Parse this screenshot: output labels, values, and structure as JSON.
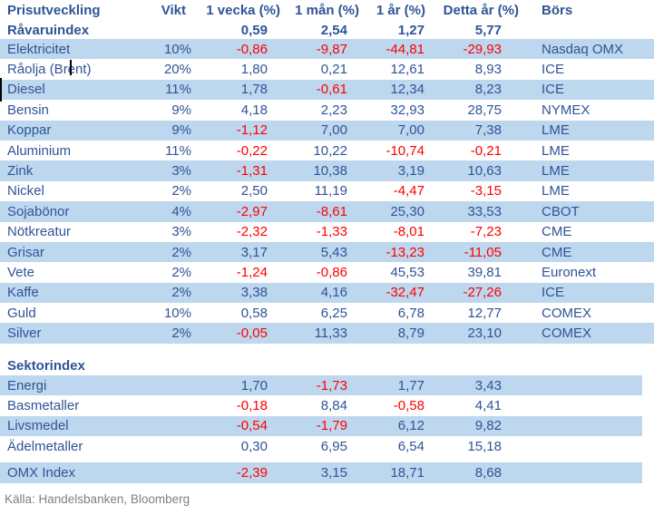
{
  "colors": {
    "ink": "#2F5496",
    "band": "#BDD7EE",
    "neg": "#FF0000",
    "muted": "#808080"
  },
  "header": {
    "columns": [
      "Prisutveckling",
      "Vikt",
      "1 vecka (%)",
      "1 mån (%)",
      "1 år (%)",
      "Detta år (%)",
      "Börs"
    ]
  },
  "table": {
    "ravaruindex": {
      "label": "Råvaruindex",
      "week1": "0,59",
      "month1": "2,54",
      "year1": "1,27",
      "ytd": "5,77"
    },
    "commodities": [
      {
        "name": "Elektricitet",
        "weight": "10%",
        "week1": "-0,86",
        "month1": "-9,87",
        "year1": "-44,81",
        "ytd": "-29,93",
        "exchange": "Nasdaq OMX"
      },
      {
        "name": "Råolja (Brent)",
        "weight": "20%",
        "week1": "1,80",
        "month1": "0,21",
        "year1": "12,61",
        "ytd": "8,93",
        "exchange": "ICE"
      },
      {
        "name": "Diesel",
        "weight": "11%",
        "week1": "1,78",
        "month1": "-0,61",
        "year1": "12,34",
        "ytd": "8,23",
        "exchange": "ICE"
      },
      {
        "name": "Bensin",
        "weight": "9%",
        "week1": "4,18",
        "month1": "2,23",
        "year1": "32,93",
        "ytd": "28,75",
        "exchange": "NYMEX"
      },
      {
        "name": "Koppar",
        "weight": "9%",
        "week1": "-1,12",
        "month1": "7,00",
        "year1": "7,00",
        "ytd": "7,38",
        "exchange": "LME"
      },
      {
        "name": "Aluminium",
        "weight": "11%",
        "week1": "-0,22",
        "month1": "10,22",
        "year1": "-10,74",
        "ytd": "-0,21",
        "exchange": "LME"
      },
      {
        "name": "Zink",
        "weight": "3%",
        "week1": "-1,31",
        "month1": "10,38",
        "year1": "3,19",
        "ytd": "10,63",
        "exchange": "LME"
      },
      {
        "name": "Nickel",
        "weight": "2%",
        "week1": "2,50",
        "month1": "11,19",
        "year1": "-4,47",
        "ytd": "-3,15",
        "exchange": "LME"
      },
      {
        "name": "Sojabönor",
        "weight": "4%",
        "week1": "-2,97",
        "month1": "-8,61",
        "year1": "25,30",
        "ytd": "33,53",
        "exchange": "CBOT"
      },
      {
        "name": "Nötkreatur",
        "weight": "3%",
        "week1": "-2,32",
        "month1": "-1,33",
        "year1": "-8,01",
        "ytd": "-7,23",
        "exchange": "CME"
      },
      {
        "name": "Grisar",
        "weight": "2%",
        "week1": "3,17",
        "month1": "5,43",
        "year1": "-13,23",
        "ytd": "-11,05",
        "exchange": "CME"
      },
      {
        "name": "Vete",
        "weight": "2%",
        "week1": "-1,24",
        "month1": "-0,86",
        "year1": "45,53",
        "ytd": "39,81",
        "exchange": "Euronext"
      },
      {
        "name": "Kaffe",
        "weight": "2%",
        "week1": "3,38",
        "month1": "4,16",
        "year1": "-32,47",
        "ytd": "-27,26",
        "exchange": "ICE"
      },
      {
        "name": "Guld",
        "weight": "10%",
        "week1": "0,58",
        "month1": "6,25",
        "year1": "6,78",
        "ytd": "12,77",
        "exchange": "COMEX"
      },
      {
        "name": "Silver",
        "weight": "2%",
        "week1": "-0,05",
        "month1": "11,33",
        "year1": "8,79",
        "ytd": "23,10",
        "exchange": "COMEX"
      }
    ],
    "sektorindex_label": "Sektorindex",
    "sectors": [
      {
        "name": "Energi",
        "week1": "1,70",
        "month1": "-1,73",
        "year1": "1,77",
        "ytd": "3,43"
      },
      {
        "name": "Basmetaller",
        "week1": "-0,18",
        "month1": "8,84",
        "year1": "-0,58",
        "ytd": "4,41"
      },
      {
        "name": "Livsmedel",
        "week1": "-0,54",
        "month1": "-1,79",
        "year1": "6,12",
        "ytd": "9,82"
      },
      {
        "name": "Ädelmetaller",
        "week1": "0,30",
        "month1": "6,95",
        "year1": "6,54",
        "ytd": "15,18"
      }
    ],
    "omx": {
      "name": "OMX Index",
      "week1": "-2,39",
      "month1": "3,15",
      "year1": "18,71",
      "ytd": "8,68"
    }
  },
  "footer": {
    "source": "Källa: Handelsbanken, Bloomberg"
  }
}
